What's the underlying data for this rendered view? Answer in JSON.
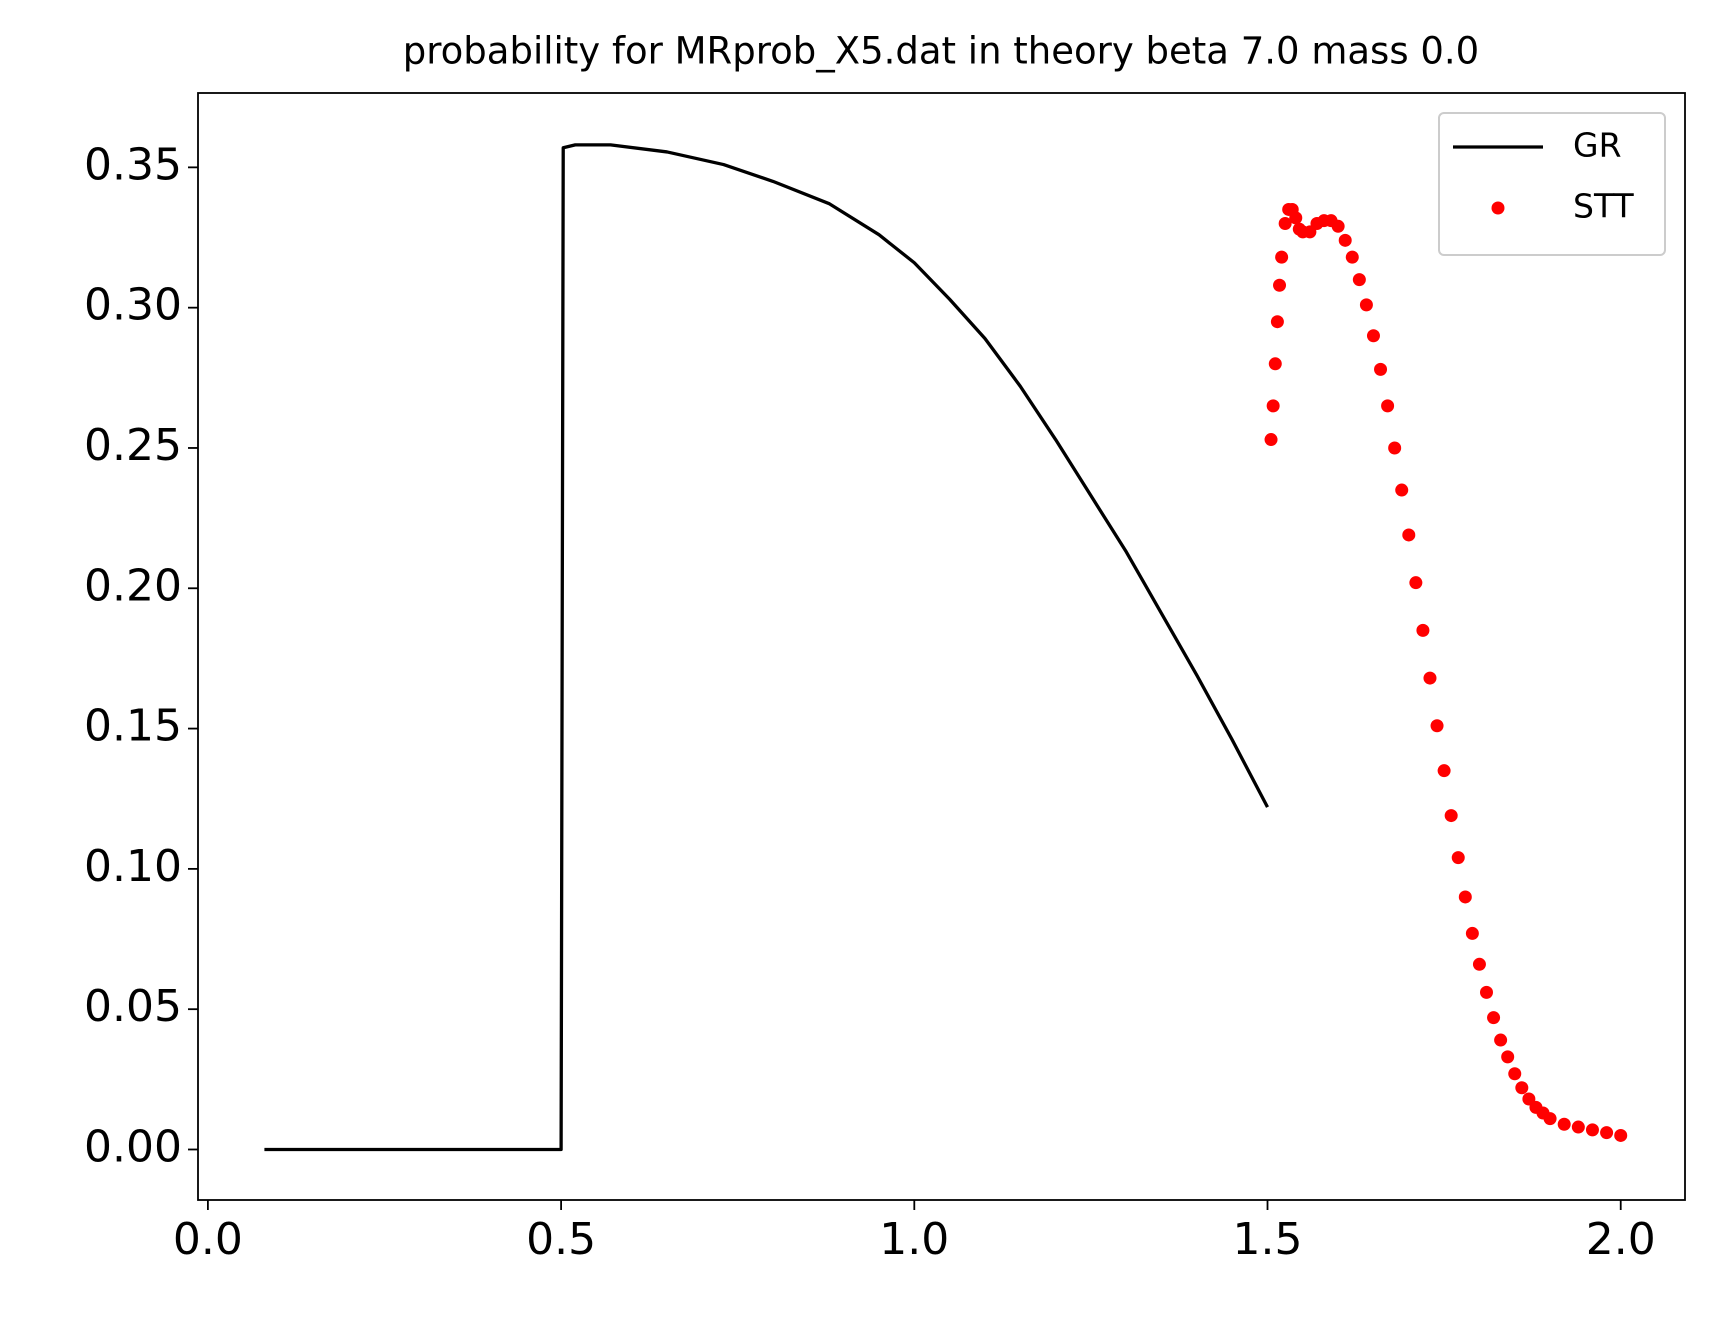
{
  "chart_data": [
    {
      "type": "line",
      "title": "probability for MRprob_X5.dat in theory beta 7.0 mass 0.0",
      "xlim": [
        -0.014,
        2.091
      ],
      "ylim": [
        -0.018,
        0.3765
      ],
      "xticks": [
        {
          "value": 0,
          "label": "0.0"
        },
        {
          "value": 0.5,
          "label": "0.5"
        },
        {
          "value": 1,
          "label": "1.0"
        },
        {
          "value": 1.5,
          "label": "1.5"
        },
        {
          "value": 2,
          "label": "2.0"
        }
      ],
      "yticks": [
        {
          "value": 0,
          "label": "0.00"
        },
        {
          "value": 0.05,
          "label": "0.05"
        },
        {
          "value": 0.1,
          "label": "0.10"
        },
        {
          "value": 0.15,
          "label": "0.15"
        },
        {
          "value": 0.2,
          "label": "0.20"
        },
        {
          "value": 0.25,
          "label": "0.25"
        },
        {
          "value": 0.3,
          "label": "0.30"
        },
        {
          "value": 0.35,
          "label": "0.35"
        }
      ],
      "legend": "upper right",
      "series": [
        {
          "name": "GR",
          "color": "#000000",
          "style": "line",
          "x": [
            0.08,
            0.5,
            0.503,
            0.52,
            0.57,
            0.65,
            0.73,
            0.8,
            0.88,
            0.95,
            1.0,
            1.05,
            1.1,
            1.15,
            1.2,
            1.25,
            1.3,
            1.35,
            1.4,
            1.45,
            1.5
          ],
          "values": [
            0,
            0,
            0.357,
            0.358,
            0.358,
            0.3555,
            0.351,
            0.345,
            0.337,
            0.326,
            0.316,
            0.303,
            0.289,
            0.272,
            0.253,
            0.233,
            0.213,
            0.191,
            0.169,
            0.146,
            0.122
          ]
        },
        {
          "name": "STT",
          "color": "#ff0000",
          "style": "dots",
          "x": [
            1.505,
            1.508,
            1.511,
            1.514,
            1.517,
            1.52,
            1.525,
            1.53,
            1.535,
            1.54,
            1.545,
            1.55,
            1.56,
            1.57,
            1.58,
            1.59,
            1.6,
            1.61,
            1.62,
            1.63,
            1.64,
            1.65,
            1.66,
            1.67,
            1.68,
            1.69,
            1.7,
            1.71,
            1.72,
            1.73,
            1.74,
            1.75,
            1.76,
            1.77,
            1.78,
            1.79,
            1.8,
            1.81,
            1.82,
            1.83,
            1.84,
            1.85,
            1.86,
            1.87,
            1.88,
            1.89,
            1.9,
            1.92,
            1.94,
            1.96,
            1.98,
            2.0
          ],
          "values": [
            0.253,
            0.265,
            0.28,
            0.295,
            0.308,
            0.318,
            0.33,
            0.335,
            0.335,
            0.332,
            0.328,
            0.327,
            0.327,
            0.33,
            0.331,
            0.331,
            0.329,
            0.324,
            0.318,
            0.31,
            0.301,
            0.29,
            0.278,
            0.265,
            0.25,
            0.235,
            0.219,
            0.202,
            0.185,
            0.168,
            0.151,
            0.135,
            0.119,
            0.104,
            0.09,
            0.077,
            0.066,
            0.056,
            0.047,
            0.039,
            0.033,
            0.027,
            0.022,
            0.018,
            0.015,
            0.013,
            0.011,
            0.009,
            0.008,
            0.007,
            0.006,
            0.005
          ]
        }
      ]
    }
  ]
}
